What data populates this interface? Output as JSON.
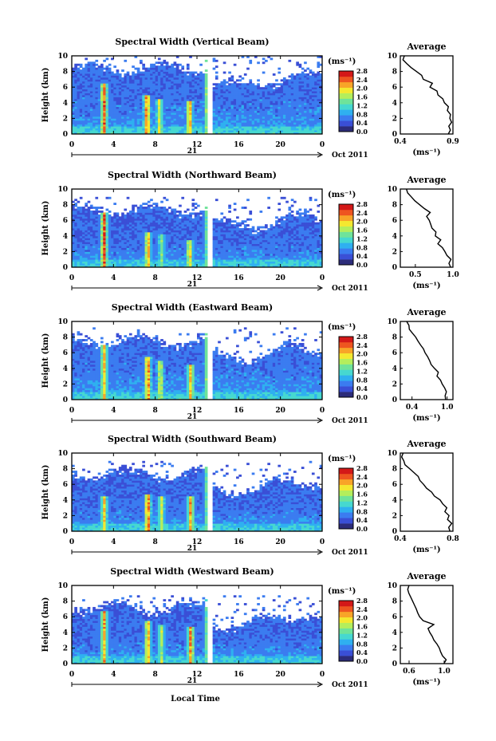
{
  "figure": {
    "xlabel": "Local Time",
    "day_label": "21",
    "date_label": "Oct 2011",
    "average_title": "Average",
    "unit_label": "(ms⁻¹)",
    "ylabel": "Height (km)"
  },
  "colorbar": {
    "ticks": [
      "2.8",
      "2.4",
      "2.0",
      "1.6",
      "1.2",
      "0.8",
      "0.4",
      "0.0"
    ],
    "range": [
      0,
      2.8
    ],
    "colors": [
      "#2c2c7a",
      "#3a4fd6",
      "#3b7cf0",
      "#2fb0f0",
      "#46d8d0",
      "#6fe39a",
      "#b4ee5c",
      "#f4e830",
      "#f8a428",
      "#ee5520",
      "#d41818"
    ]
  },
  "chart_data": [
    {
      "type": "heatmap",
      "title": "Spectral Width (Vertical Beam)",
      "xlabel": "Local Time",
      "ylabel": "Height (km)",
      "x_ticks": [
        "0",
        "4",
        "8",
        "12",
        "16",
        "20",
        "0"
      ],
      "y_ticks": [
        "0",
        "2",
        "4",
        "6",
        "8",
        "10"
      ],
      "xlim": [
        0,
        24
      ],
      "ylim": [
        0,
        10
      ],
      "clim": [
        0,
        2.8
      ],
      "top_km": 9.6,
      "baseline": 0.55,
      "events": [
        {
          "t": 3.1,
          "value": 2.6,
          "top": 6.6
        },
        {
          "t": 7.2,
          "value": 2.6,
          "top": 5.0
        },
        {
          "t": 8.4,
          "value": 2.0,
          "top": 4.6
        },
        {
          "t": 11.3,
          "value": 2.4,
          "top": 4.2
        },
        {
          "t": 13.0,
          "value": 1.8,
          "top": 9.4
        }
      ],
      "average": {
        "title": "Average",
        "xlabel": "(ms⁻¹)",
        "xlim": [
          0.4,
          0.9
        ],
        "x_ticks": [
          "0.4",
          "0.9"
        ],
        "y_ticks": [
          "0",
          "2",
          "4",
          "6",
          "8",
          "10"
        ],
        "profile": [
          [
            0,
            0.86
          ],
          [
            0.5,
            0.88
          ],
          [
            1,
            0.86
          ],
          [
            1.5,
            0.89
          ],
          [
            2,
            0.87
          ],
          [
            2.5,
            0.88
          ],
          [
            3,
            0.85
          ],
          [
            3.5,
            0.86
          ],
          [
            4,
            0.82
          ],
          [
            4.5,
            0.8
          ],
          [
            5,
            0.76
          ],
          [
            5.5,
            0.75
          ],
          [
            6,
            0.68
          ],
          [
            6.5,
            0.7
          ],
          [
            7,
            0.62
          ],
          [
            7.5,
            0.6
          ],
          [
            8,
            0.55
          ],
          [
            8.5,
            0.5
          ],
          [
            9,
            0.46
          ],
          [
            9.5,
            0.42
          ],
          [
            10,
            0.44
          ]
        ]
      }
    },
    {
      "type": "heatmap",
      "title": "Spectral Width (Northward Beam)",
      "xlabel": "Local Time",
      "ylabel": "Height (km)",
      "x_ticks": [
        "0",
        "4",
        "8",
        "12",
        "16",
        "20",
        "0"
      ],
      "y_ticks": [
        "0",
        "2",
        "4",
        "6",
        "8",
        "10"
      ],
      "xlim": [
        0,
        24
      ],
      "ylim": [
        0,
        10
      ],
      "clim": [
        0,
        2.8
      ],
      "top_km": 8.6,
      "baseline": 0.5,
      "events": [
        {
          "t": 3.1,
          "value": 2.7,
          "top": 7.0
        },
        {
          "t": 7.3,
          "value": 2.3,
          "top": 4.6
        },
        {
          "t": 8.6,
          "value": 1.6,
          "top": 4.2
        },
        {
          "t": 11.3,
          "value": 2.2,
          "top": 3.6
        },
        {
          "t": 13.0,
          "value": 1.6,
          "top": 9.0
        }
      ],
      "average": {
        "title": "Average",
        "xlabel": "(ms⁻¹)",
        "xlim": [
          0.3,
          1.0
        ],
        "x_ticks": [
          "0.5",
          "1.0"
        ],
        "y_ticks": [
          "0",
          "2",
          "4",
          "6",
          "8",
          "10"
        ],
        "profile": [
          [
            0,
            0.97
          ],
          [
            0.5,
            0.95
          ],
          [
            1,
            0.98
          ],
          [
            1.5,
            0.92
          ],
          [
            2,
            0.9
          ],
          [
            2.5,
            0.86
          ],
          [
            3,
            0.8
          ],
          [
            3.5,
            0.84
          ],
          [
            4,
            0.76
          ],
          [
            4.5,
            0.78
          ],
          [
            5,
            0.72
          ],
          [
            5.5,
            0.7
          ],
          [
            6,
            0.68
          ],
          [
            6.5,
            0.65
          ],
          [
            7,
            0.7
          ],
          [
            7.5,
            0.62
          ],
          [
            8,
            0.55
          ],
          [
            8.5,
            0.5
          ],
          [
            9,
            0.45
          ],
          [
            9.5,
            0.4
          ],
          [
            10,
            0.38
          ]
        ]
      }
    },
    {
      "type": "heatmap",
      "title": "Spectral Width (Eastward Beam)",
      "xlabel": "Local Time",
      "ylabel": "Height (km)",
      "x_ticks": [
        "0",
        "4",
        "8",
        "12",
        "16",
        "20",
        "0"
      ],
      "y_ticks": [
        "0",
        "2",
        "4",
        "6",
        "8",
        "10"
      ],
      "xlim": [
        0,
        24
      ],
      "ylim": [
        0,
        10
      ],
      "clim": [
        0,
        2.8
      ],
      "top_km": 8.8,
      "baseline": 0.55,
      "events": [
        {
          "t": 3.1,
          "value": 2.3,
          "top": 7.0
        },
        {
          "t": 7.3,
          "value": 2.5,
          "top": 5.6
        },
        {
          "t": 8.5,
          "value": 2.0,
          "top": 5.0
        },
        {
          "t": 11.4,
          "value": 2.3,
          "top": 4.4
        },
        {
          "t": 13.0,
          "value": 1.8,
          "top": 9.6
        }
      ],
      "average": {
        "title": "Average",
        "xlabel": "(ms⁻¹)",
        "xlim": [
          0.2,
          1.1
        ],
        "x_ticks": [
          "0.4",
          "1.0"
        ],
        "y_ticks": [
          "0",
          "2",
          "4",
          "6",
          "8",
          "10"
        ],
        "profile": [
          [
            0,
            0.98
          ],
          [
            0.5,
            0.96
          ],
          [
            1,
            0.99
          ],
          [
            1.5,
            0.95
          ],
          [
            2,
            0.92
          ],
          [
            2.5,
            0.88
          ],
          [
            3,
            0.82
          ],
          [
            3.5,
            0.86
          ],
          [
            4,
            0.78
          ],
          [
            4.5,
            0.72
          ],
          [
            5,
            0.7
          ],
          [
            5.5,
            0.66
          ],
          [
            6,
            0.62
          ],
          [
            6.5,
            0.6
          ],
          [
            7,
            0.55
          ],
          [
            7.5,
            0.5
          ],
          [
            8,
            0.46
          ],
          [
            8.5,
            0.4
          ],
          [
            9,
            0.36
          ],
          [
            9.5,
            0.34
          ],
          [
            10,
            0.3
          ]
        ]
      }
    },
    {
      "type": "heatmap",
      "title": "Spectral Width (Southward Beam)",
      "xlabel": "Local Time",
      "ylabel": "Height (km)",
      "x_ticks": [
        "0",
        "4",
        "8",
        "12",
        "16",
        "20",
        "0"
      ],
      "y_ticks": [
        "0",
        "2",
        "4",
        "6",
        "8",
        "10"
      ],
      "xlim": [
        0,
        24
      ],
      "ylim": [
        0,
        10
      ],
      "clim": [
        0,
        2.8
      ],
      "top_km": 8.6,
      "baseline": 0.5,
      "events": [
        {
          "t": 3.1,
          "value": 2.2,
          "top": 4.6
        },
        {
          "t": 7.3,
          "value": 2.6,
          "top": 4.8
        },
        {
          "t": 8.6,
          "value": 1.9,
          "top": 4.4
        },
        {
          "t": 11.4,
          "value": 2.4,
          "top": 4.4
        },
        {
          "t": 13.0,
          "value": 1.6,
          "top": 9.6
        }
      ],
      "average": {
        "title": "Average",
        "xlabel": "(ms⁻¹)",
        "xlim": [
          0.4,
          0.8
        ],
        "x_ticks": [
          "0.4",
          "0.8"
        ],
        "y_ticks": [
          "0",
          "2",
          "4",
          "6",
          "8",
          "10"
        ],
        "profile": [
          [
            0,
            0.78
          ],
          [
            0.5,
            0.77
          ],
          [
            1,
            0.79
          ],
          [
            1.5,
            0.76
          ],
          [
            2,
            0.77
          ],
          [
            2.5,
            0.74
          ],
          [
            3,
            0.75
          ],
          [
            3.5,
            0.72
          ],
          [
            4,
            0.7
          ],
          [
            4.5,
            0.66
          ],
          [
            5,
            0.64
          ],
          [
            5.5,
            0.6
          ],
          [
            6,
            0.58
          ],
          [
            6.5,
            0.55
          ],
          [
            7,
            0.54
          ],
          [
            7.5,
            0.5
          ],
          [
            8,
            0.47
          ],
          [
            8.5,
            0.44
          ],
          [
            9,
            0.43
          ],
          [
            9.5,
            0.41
          ],
          [
            10,
            0.42
          ]
        ]
      }
    },
    {
      "type": "heatmap",
      "title": "Spectral Width (Westward Beam)",
      "xlabel": "Local Time",
      "ylabel": "Height (km)",
      "x_ticks": [
        "0",
        "4",
        "8",
        "12",
        "16",
        "20",
        "0"
      ],
      "y_ticks": [
        "0",
        "2",
        "4",
        "6",
        "8",
        "10"
      ],
      "xlim": [
        0,
        24
      ],
      "ylim": [
        0,
        10
      ],
      "clim": [
        0,
        2.8
      ],
      "top_km": 8.4,
      "baseline": 0.5,
      "events": [
        {
          "t": 3.1,
          "value": 2.4,
          "top": 6.8
        },
        {
          "t": 7.3,
          "value": 2.3,
          "top": 5.6
        },
        {
          "t": 8.6,
          "value": 1.8,
          "top": 5.0
        },
        {
          "t": 11.4,
          "value": 2.5,
          "top": 4.8
        },
        {
          "t": 13.0,
          "value": 1.6,
          "top": 9.6
        }
      ],
      "average": {
        "title": "Average",
        "xlabel": "(ms⁻¹)",
        "xlim": [
          0.5,
          1.1
        ],
        "x_ticks": [
          "0.6",
          "1.0"
        ],
        "y_ticks": [
          "0",
          "2",
          "4",
          "6",
          "8",
          "10"
        ],
        "profile": [
          [
            0,
            1.0
          ],
          [
            0.5,
            1.02
          ],
          [
            1,
            0.98
          ],
          [
            1.5,
            0.96
          ],
          [
            2,
            0.94
          ],
          [
            2.5,
            0.92
          ],
          [
            3,
            0.88
          ],
          [
            3.5,
            0.86
          ],
          [
            4,
            0.84
          ],
          [
            4.5,
            0.82
          ],
          [
            5,
            0.88
          ],
          [
            5.5,
            0.76
          ],
          [
            6,
            0.72
          ],
          [
            6.5,
            0.7
          ],
          [
            7,
            0.68
          ],
          [
            7.5,
            0.66
          ],
          [
            8,
            0.64
          ],
          [
            8.5,
            0.62
          ],
          [
            9,
            0.6
          ],
          [
            9.5,
            0.58
          ],
          [
            10,
            0.6
          ]
        ]
      }
    }
  ]
}
